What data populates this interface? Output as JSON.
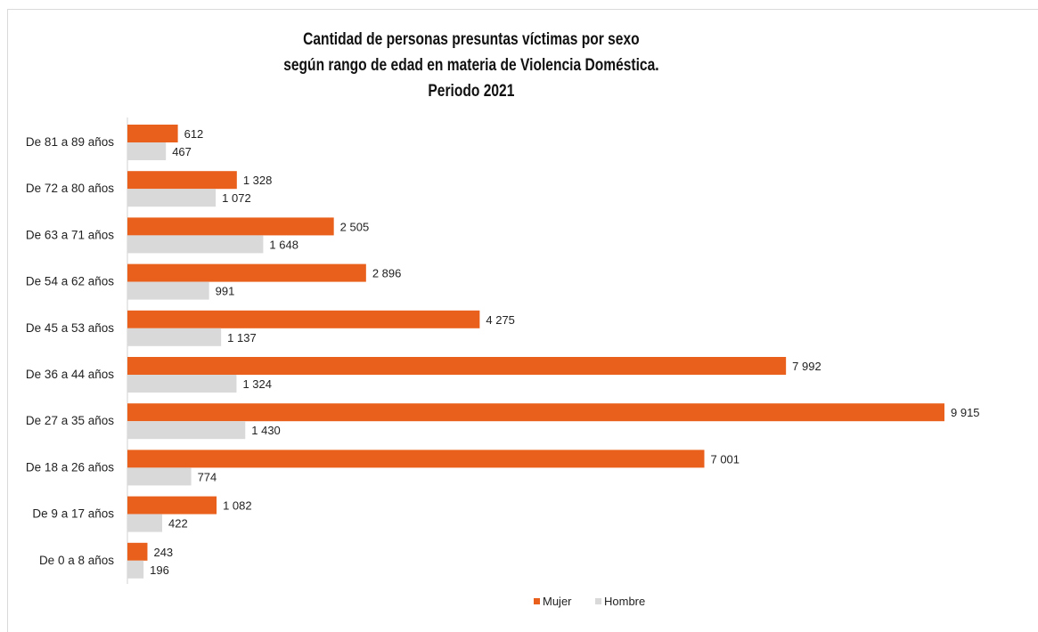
{
  "chart_data": {
    "type": "bar",
    "orientation": "horizontal",
    "title_lines": [
      "Cantidad de personas presuntas víctimas por sexo",
      "según rango de edad en materia de Violencia Doméstica.",
      "Periodo 2021"
    ],
    "categories": [
      "De 81 a 89 años",
      "De 72 a 80 años",
      "De 63 a 71 años",
      "De 54 a 62 años",
      "De 45 a 53 años",
      "De 36 a 44 años",
      "De 27 a 35 años",
      "De 18 a 26 años",
      "De 9 a 17 años",
      "De 0 a 8 años"
    ],
    "series": [
      {
        "name": "Mujer",
        "color": "#E8601C",
        "values": [
          612,
          1328,
          2505,
          2896,
          4275,
          7992,
          9915,
          7001,
          1082,
          243
        ],
        "labels": [
          "612",
          "1 328",
          "2 505",
          "2 896",
          "4 275",
          "7 992",
          "9 915",
          "7 001",
          "1 082",
          "243"
        ]
      },
      {
        "name": "Hombre",
        "color": "#D9D9D9",
        "values": [
          467,
          1072,
          1648,
          991,
          1137,
          1324,
          1430,
          774,
          422,
          196
        ],
        "labels": [
          "467",
          "1 072",
          "1 648",
          "991",
          "1 137",
          "1 324",
          "1 430",
          "774",
          "422",
          "196"
        ]
      }
    ],
    "xlim": [
      0,
      9915
    ],
    "grid": false,
    "legend_position": "bottom"
  }
}
